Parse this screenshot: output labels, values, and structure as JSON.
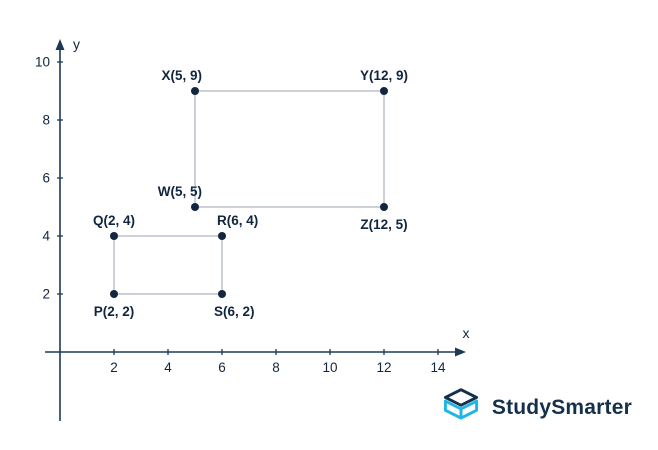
{
  "branding": {
    "name": "StudySmarter"
  },
  "chart_data": {
    "type": "scatter",
    "title": "",
    "xlabel": "x",
    "ylabel": "y",
    "xlim": [
      0,
      15
    ],
    "ylim": [
      0,
      10.6
    ],
    "grid": false,
    "x_ticks": [
      2,
      4,
      6,
      8,
      10,
      12,
      14
    ],
    "y_ticks": [
      2,
      4,
      6,
      8,
      10
    ],
    "colors": {
      "axis": "#1c3a57",
      "point": "#13263f",
      "line": "#97a3ad",
      "label": "#10253e",
      "logo_navy": "#15304b",
      "logo_teal": "#1fb5e9"
    },
    "shapes": [
      {
        "name": "rectangle-PQRS",
        "vertices": [
          {
            "label": "P(2, 2)",
            "point": "P",
            "x": 2,
            "y": 2,
            "label_placement": "below"
          },
          {
            "label": "Q(2, 4)",
            "point": "Q",
            "x": 2,
            "y": 4,
            "label_placement": "above"
          },
          {
            "label": "R(6, 4)",
            "point": "R",
            "x": 6,
            "y": 4,
            "label_placement": "above-right"
          },
          {
            "label": "S(6, 2)",
            "point": "S",
            "x": 6,
            "y": 2,
            "label_placement": "below-right"
          }
        ]
      },
      {
        "name": "rectangle-WXYZ",
        "vertices": [
          {
            "label": "W(5, 5)",
            "point": "W",
            "x": 5,
            "y": 5,
            "label_placement": "above-left"
          },
          {
            "label": "X(5, 9)",
            "point": "X",
            "x": 5,
            "y": 9,
            "label_placement": "above-left"
          },
          {
            "label": "Y(12, 9)",
            "point": "Y",
            "x": 12,
            "y": 9,
            "label_placement": "above"
          },
          {
            "label": "Z(12, 5)",
            "point": "Z",
            "x": 12,
            "y": 5,
            "label_placement": "below"
          }
        ]
      }
    ]
  }
}
